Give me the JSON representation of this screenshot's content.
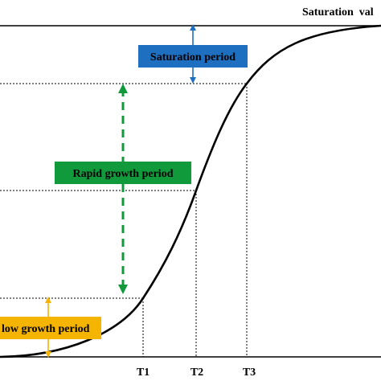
{
  "header": {
    "saturation_value_label": "Saturation  val"
  },
  "periods": {
    "saturation": {
      "label": "Saturation  period",
      "box_color": "#1e6fc0",
      "arrow_color": "#1e6fc0"
    },
    "rapid": {
      "label": "Rapid growth period",
      "box_color": "#119a3c",
      "arrow_color": "#119a3c"
    },
    "slow": {
      "label": "low growth period",
      "box_color": "#f5b400",
      "arrow_color": "#f5b400"
    }
  },
  "axis": {
    "t1": "T1",
    "t2": "T2",
    "t3": "T3"
  },
  "colors": {
    "curve": "#000000",
    "guide": "#000000",
    "label_text": "#000000"
  }
}
